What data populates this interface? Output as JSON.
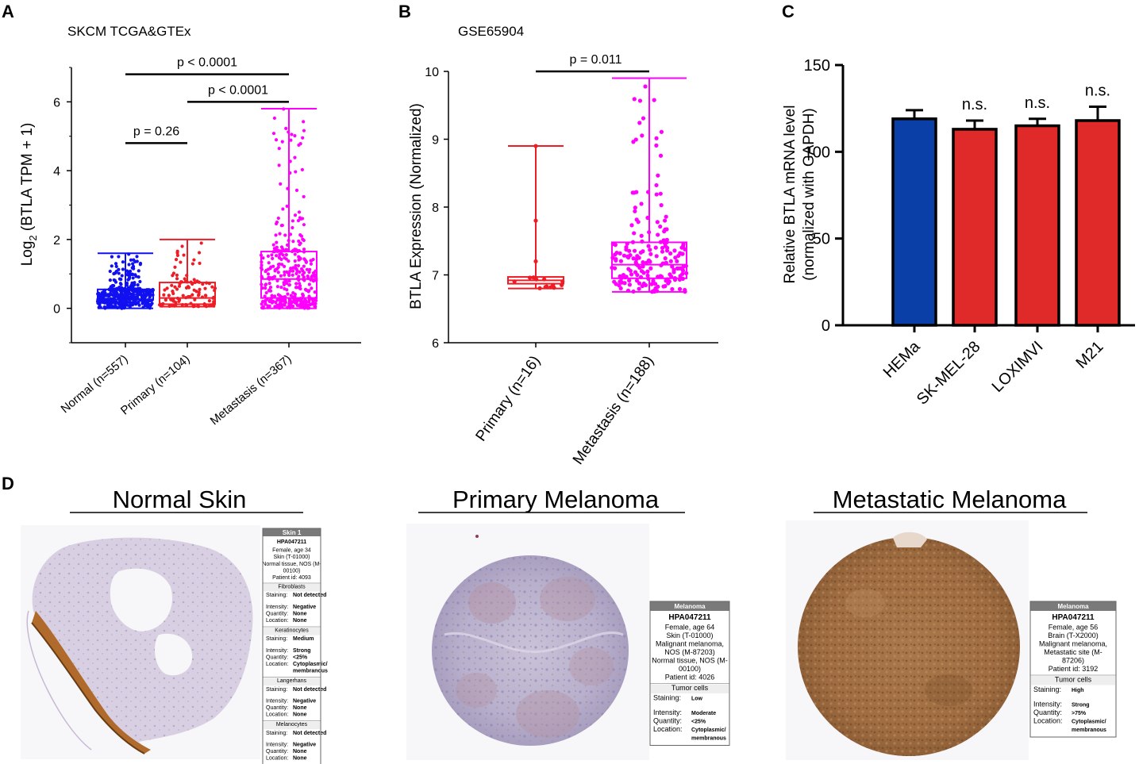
{
  "panels": {
    "A": {
      "letter": "A",
      "title": "SKCM TCGA&GTEx"
    },
    "B": {
      "letter": "B",
      "title": "GSE65904"
    },
    "C": {
      "letter": "C"
    },
    "D": {
      "letter": "D"
    }
  },
  "colors": {
    "normal_blue": "#1010f0",
    "primary_red": "#ee1c25",
    "metastasis_magenta": "#ff00ff",
    "bar_blue": "#0b3fa8",
    "bar_red": "#e02a2a"
  },
  "chart_data": [
    {
      "id": "A",
      "type": "box",
      "title": "SKCM TCGA&GTEx",
      "ylabel": "Log2 (BTLA TPM + 1)",
      "ylabel_main": "Log",
      "ylabel_sub": "2",
      "ylabel_rest": " (BTLA TPM + 1)",
      "ylim": [
        -1,
        7
      ],
      "yticks": [
        0,
        2,
        4,
        6
      ],
      "categories": [
        "Normal (n=557)",
        "Primary (n=104)",
        "Metastasis (n=367)"
      ],
      "boxes": [
        {
          "name": "Normal (n=557)",
          "min": 0.0,
          "q1": 0.25,
          "median": 0.4,
          "q3": 0.55,
          "max": 1.6,
          "n": 557
        },
        {
          "name": "Primary (n=104)",
          "min": 0.05,
          "q1": 0.12,
          "median": 0.3,
          "q3": 0.75,
          "max": 2.0,
          "n": 104
        },
        {
          "name": "Metastasis (n=367)",
          "min": 0.0,
          "q1": 0.3,
          "median": 0.85,
          "q3": 1.65,
          "max": 5.8,
          "n": 367
        }
      ],
      "comparisons": [
        {
          "from": 0,
          "to": 2,
          "label": "p < 0.0001",
          "y": 6.8
        },
        {
          "from": 1,
          "to": 2,
          "label": "p < 0.0001",
          "y": 6.0
        },
        {
          "from": 0,
          "to": 1,
          "label": "p = 0.26",
          "y": 4.8
        }
      ]
    },
    {
      "id": "B",
      "type": "box",
      "title": "GSE65904",
      "ylabel": "BTLA Expression  (Normalized)",
      "ylim": [
        6,
        10
      ],
      "yticks": [
        6,
        7,
        8,
        9,
        10
      ],
      "categories": [
        "Primary (n=16)",
        "Metastasis (n=188)"
      ],
      "boxes": [
        {
          "name": "Primary (n=16)",
          "min": 6.8,
          "q1": 6.87,
          "median": 6.92,
          "q3": 6.97,
          "max": 8.9,
          "n": 16
        },
        {
          "name": "Metastasis (n=188)",
          "min": 6.75,
          "q1": 6.95,
          "median": 7.15,
          "q3": 7.48,
          "max": 9.9,
          "n": 188
        }
      ],
      "comparisons": [
        {
          "from": 0,
          "to": 1,
          "label": "p = 0.011",
          "y": 10.0
        }
      ]
    },
    {
      "id": "C",
      "type": "bar",
      "ylabel_line1": "Relative BTLA mRNA level",
      "ylabel_line2": "(normalized with GAPDH)",
      "ylim": [
        0,
        150
      ],
      "yticks": [
        0,
        50,
        100,
        150
      ],
      "categories": [
        "HEMa",
        "SK-MEL-28",
        "LOXIMVI",
        "M21"
      ],
      "values": [
        119,
        113,
        115,
        118
      ],
      "errors": [
        5,
        5,
        4,
        8
      ],
      "annotations": [
        "",
        "n.s.",
        "n.s.",
        "n.s."
      ]
    }
  ],
  "panelD": {
    "sections": [
      {
        "title": "Normal Skin",
        "header": "Skin 1",
        "antibody": "HPA047211",
        "patient_lines": [
          "Female, age 34",
          "Skin (T-01000)",
          "Normal tissue, NOS (M-",
          "00100)",
          "Patient id: 4093"
        ],
        "cell_groups": [
          {
            "name": "Fibroblasts",
            "rows": [
              [
                "Staining:",
                "Not detected"
              ],
              [
                "Intensity:",
                "Negative"
              ],
              [
                "Quantity:",
                "None"
              ],
              [
                "Location:",
                "None"
              ]
            ]
          },
          {
            "name": "Keratinocytes",
            "rows": [
              [
                "Staining:",
                "Medium"
              ],
              [
                "Intensity:",
                "Strong"
              ],
              [
                "Quantity:",
                "<25%"
              ],
              [
                "Location:",
                "Cytoplasmic/"
              ],
              [
                "",
                "membranous"
              ]
            ]
          },
          {
            "name": "Langerhans",
            "rows": [
              [
                "Staining:",
                "Not detected"
              ],
              [
                "Intensity:",
                "Negative"
              ],
              [
                "Quantity:",
                "None"
              ],
              [
                "Location:",
                "None"
              ]
            ]
          },
          {
            "name": "Melanocytes",
            "rows": [
              [
                "Staining:",
                "Not detected"
              ],
              [
                "Intensity:",
                "Negative"
              ],
              [
                "Quantity:",
                "None"
              ],
              [
                "Location:",
                "None"
              ]
            ]
          }
        ]
      },
      {
        "title": "Primary Melanoma",
        "header": "Melanoma",
        "antibody": "HPA047211",
        "patient_lines": [
          "Female, age 64",
          "Skin (T-01000)",
          "Malignant melanoma,",
          "NOS (M-87203)",
          "Normal tissue, NOS (M-",
          "00100)",
          "Patient id: 4026"
        ],
        "cell_groups": [
          {
            "name": "Tumor cells",
            "rows": [
              [
                "Staining:",
                "Low"
              ],
              [
                "Intensity:",
                "Moderate"
              ],
              [
                "Quantity:",
                "<25%"
              ],
              [
                "Location:",
                "Cytoplasmic/"
              ],
              [
                "",
                "membranous"
              ]
            ]
          }
        ]
      },
      {
        "title": "Metastatic Melanoma",
        "header": "Melanoma",
        "antibody": "HPA047211",
        "patient_lines": [
          "Female, age 56",
          "Brain (T-X2000)",
          "Malignant melanoma,",
          "Metastatic site (M-",
          "87206)",
          "Patient id: 3192"
        ],
        "cell_groups": [
          {
            "name": "Tumor cells",
            "rows": [
              [
                "Staining:",
                "High"
              ],
              [
                "Intensity:",
                "Strong"
              ],
              [
                "Quantity:",
                ">75%"
              ],
              [
                "Location:",
                "Cytoplasmic/"
              ],
              [
                "",
                "membranous"
              ]
            ]
          }
        ]
      }
    ]
  }
}
